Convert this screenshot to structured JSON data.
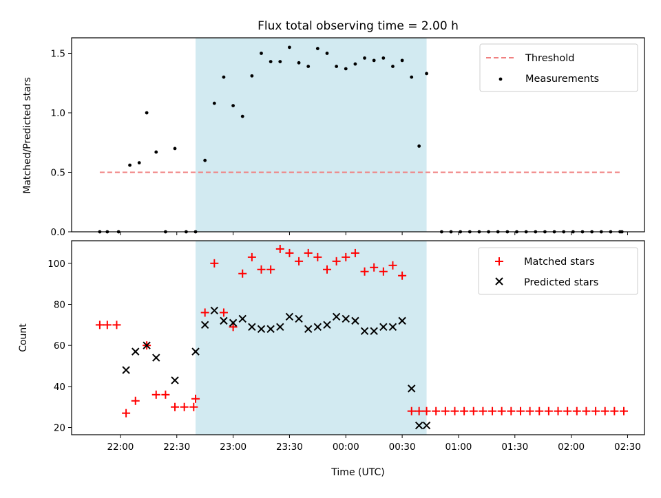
{
  "chart_data": {
    "title": "Flux total observing time = 2.00 h",
    "xlabel": "Time (UTC)",
    "x_unit": "minutes after 21:00 UTC",
    "xlim": [
      34,
      339
    ],
    "x_ticks": [
      {
        "v": 60,
        "label": "22:00"
      },
      {
        "v": 90,
        "label": "22:30"
      },
      {
        "v": 120,
        "label": "23:00"
      },
      {
        "v": 150,
        "label": "23:30"
      },
      {
        "v": 180,
        "label": "00:00"
      },
      {
        "v": 210,
        "label": "00:30"
      },
      {
        "v": 240,
        "label": "01:00"
      },
      {
        "v": 270,
        "label": "01:30"
      },
      {
        "v": 300,
        "label": "02:00"
      },
      {
        "v": 330,
        "label": "02:30"
      }
    ],
    "highlight_span": {
      "start": 100,
      "end": 223,
      "color": "#add8e6"
    },
    "panels": [
      {
        "type": "scatter",
        "ylabel": "Matched/Predicted stars",
        "ylim": [
          0,
          1.63
        ],
        "y_ticks": [
          0,
          0.5,
          1.0,
          1.5
        ],
        "y_tick_labels": [
          "0.0",
          "0.5",
          "1.0",
          "1.5"
        ],
        "legend_position": "top-right",
        "threshold": {
          "name": "Threshold",
          "value": 0.5,
          "x_start": 49,
          "x_end": 327,
          "color": "#f08080"
        },
        "series": [
          {
            "name": "Measurements",
            "color": "#000000",
            "marker": "dot",
            "x": [
              49,
              53,
              59,
              65,
              70,
              74,
              79,
              84,
              89,
              95,
              100,
              105,
              110,
              115,
              120,
              125,
              130,
              135,
              140,
              145,
              150,
              155,
              160,
              165,
              170,
              175,
              180,
              185,
              190,
              195,
              200,
              205,
              210,
              215,
              219,
              223,
              231,
              236,
              241,
              246,
              251,
              256,
              261,
              266,
              271,
              276,
              281,
              286,
              291,
              296,
              301,
              306,
              311,
              316,
              321,
              326,
              327
            ],
            "y": [
              0,
              0,
              0,
              0.56,
              0.58,
              1.0,
              0.67,
              0,
              0.7,
              0,
              0,
              0.6,
              1.08,
              1.3,
              1.06,
              0.97,
              1.31,
              1.5,
              1.43,
              1.43,
              1.55,
              1.42,
              1.39,
              1.54,
              1.5,
              1.39,
              1.37,
              1.41,
              1.46,
              1.44,
              1.46,
              1.39,
              1.44,
              1.3,
              0.72,
              1.33,
              0,
              0,
              0,
              0,
              0,
              0,
              0,
              0,
              0,
              0,
              0,
              0,
              0,
              0,
              0,
              0,
              0,
              0,
              0,
              0,
              0
            ]
          }
        ]
      },
      {
        "type": "scatter",
        "ylabel": "Count",
        "ylim": [
          16.5,
          111
        ],
        "y_ticks": [
          20,
          40,
          60,
          80,
          100
        ],
        "y_tick_labels": [
          "20",
          "40",
          "60",
          "80",
          "100"
        ],
        "legend_position": "top-right",
        "series": [
          {
            "name": "Matched stars",
            "color": "#ff0000",
            "marker": "plus",
            "x": [
              49,
              53,
              58,
              63,
              68,
              74,
              79,
              84,
              89,
              94,
              99,
              100,
              105,
              110,
              115,
              120,
              125,
              130,
              135,
              140,
              145,
              150,
              155,
              160,
              165,
              170,
              175,
              180,
              185,
              190,
              195,
              200,
              205,
              210,
              215,
              219,
              223,
              228,
              233,
              238,
              243,
              248,
              253,
              258,
              263,
              268,
              273,
              278,
              283,
              288,
              293,
              298,
              303,
              308,
              313,
              318,
              323,
              328
            ],
            "y": [
              70,
              70,
              70,
              27,
              33,
              60,
              36,
              36,
              30,
              30,
              30,
              34,
              76,
              100,
              76,
              69,
              95,
              103,
              97,
              97,
              107,
              105,
              101,
              105,
              103,
              97,
              101,
              103,
              105,
              96,
              98,
              96,
              99,
              94,
              28,
              28,
              28,
              28,
              28,
              28,
              28,
              28,
              28,
              28,
              28,
              28,
              28,
              28,
              28,
              28,
              28,
              28,
              28,
              28,
              28,
              28,
              28,
              28
            ]
          },
          {
            "name": "Predicted stars",
            "color": "#000000",
            "marker": "x",
            "x": [
              63,
              68,
              74,
              79,
              89,
              100,
              105,
              110,
              115,
              120,
              125,
              130,
              135,
              140,
              145,
              150,
              155,
              160,
              165,
              170,
              175,
              180,
              185,
              190,
              195,
              200,
              205,
              210,
              215,
              219,
              223
            ],
            "y": [
              48,
              57,
              60,
              54,
              43,
              57,
              70,
              77,
              72,
              71,
              73,
              69,
              68,
              68,
              69,
              74,
              73,
              68,
              69,
              70,
              74,
              73,
              72,
              67,
              67,
              69,
              69,
              72,
              39,
              21,
              21
            ]
          }
        ]
      }
    ]
  }
}
